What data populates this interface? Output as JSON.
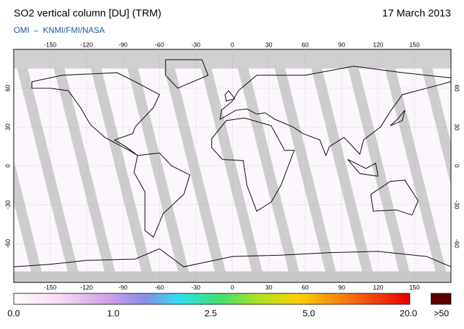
{
  "header": {
    "title": "SO2 vertical column [DU] (TRM)",
    "date": "17 March 2013",
    "credit": "OMI  –  KNMI/FMI/NASA"
  },
  "map": {
    "longitude_ticks": [
      -150,
      -120,
      -90,
      -60,
      -30,
      0,
      30,
      60,
      90,
      120,
      150
    ],
    "latitude_ticks": [
      60,
      30,
      0,
      -30,
      -60
    ]
  },
  "colorbar": {
    "labels": [
      "0.0",
      "1.0",
      "2.5",
      "5.0",
      "20.0"
    ],
    "over_label": ">50"
  }
}
